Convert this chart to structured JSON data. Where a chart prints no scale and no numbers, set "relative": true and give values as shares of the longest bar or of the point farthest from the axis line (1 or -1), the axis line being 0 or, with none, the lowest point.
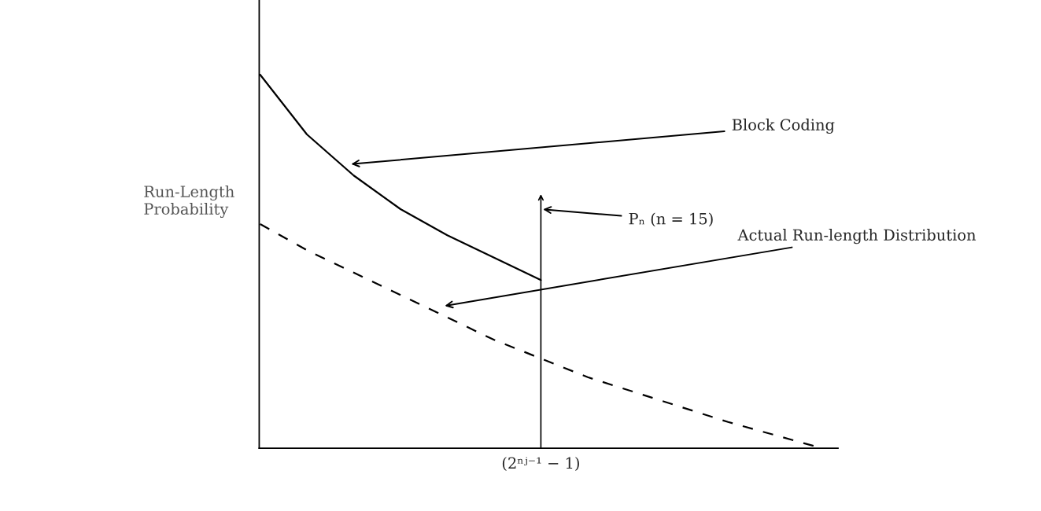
{
  "chart_data": {
    "type": "line",
    "relative": true,
    "ylabel": "Run-Length\nProbability",
    "categories": [
      null,
      null,
      null,
      null,
      null,
      null,
      null,
      null,
      null,
      null,
      null,
      null,
      null
    ],
    "series": [
      {
        "values": [
          1.0,
          0.84,
          0.73,
          0.64,
          0.57,
          0.51,
          0.45,
          null,
          null,
          null,
          null,
          null,
          null
        ],
        "color": "#000000",
        "line_style": "solid"
      },
      {
        "values": [
          0.6,
          0.53,
          0.47,
          0.41,
          0.35,
          0.29,
          0.24,
          0.19,
          0.15,
          0.11,
          0.07,
          0.035,
          0
        ],
        "color": "#000000",
        "line_style": "dashed"
      }
    ],
    "annotations": [
      "Block Coding",
      "Pₙ (n = 15)",
      "Actual Run-length Distribution",
      "(2ⁿʲ⁻¹ − 1)"
    ],
    "legend": false
  }
}
